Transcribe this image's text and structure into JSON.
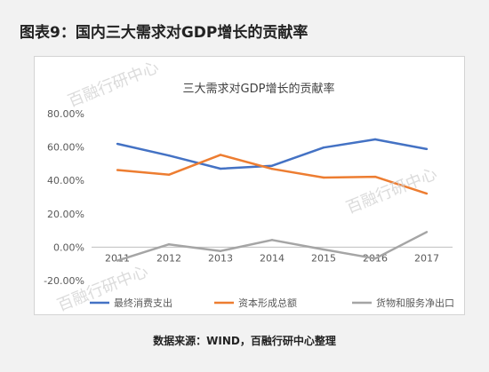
{
  "figure_title": "图表9：国内三大需求对GDP增长的贡献率",
  "source_note": "数据来源：WIND，百融行研中心整理",
  "watermark_text": "百融行研中心",
  "chart_data": {
    "type": "line",
    "title": "三大需求对GDP增长的贡献率",
    "xlabel": "",
    "ylabel": "",
    "categories": [
      "2011",
      "2012",
      "2013",
      "2014",
      "2015",
      "2016",
      "2017"
    ],
    "ylim": [
      -20,
      80
    ],
    "yticks": [
      80,
      60,
      40,
      20,
      0,
      -20
    ],
    "ytick_labels": [
      "80.00%",
      "60.00%",
      "40.00%",
      "20.00%",
      "0.00%",
      "-20.00%"
    ],
    "grid": false,
    "legend_position": "bottom",
    "series": [
      {
        "name": "最终消费支出",
        "color": "#4472c4",
        "values": [
          61.9,
          54.9,
          47.0,
          48.8,
          59.7,
          64.6,
          58.8
        ]
      },
      {
        "name": "资本形成总额",
        "color": "#ed7d31",
        "values": [
          46.2,
          43.4,
          55.3,
          46.9,
          41.7,
          42.2,
          32.1
        ]
      },
      {
        "name": "货物和服务净出口",
        "color": "#a5a5a5",
        "values": [
          -8.1,
          1.7,
          -2.3,
          4.3,
          -1.4,
          -6.8,
          9.1
        ]
      }
    ]
  }
}
